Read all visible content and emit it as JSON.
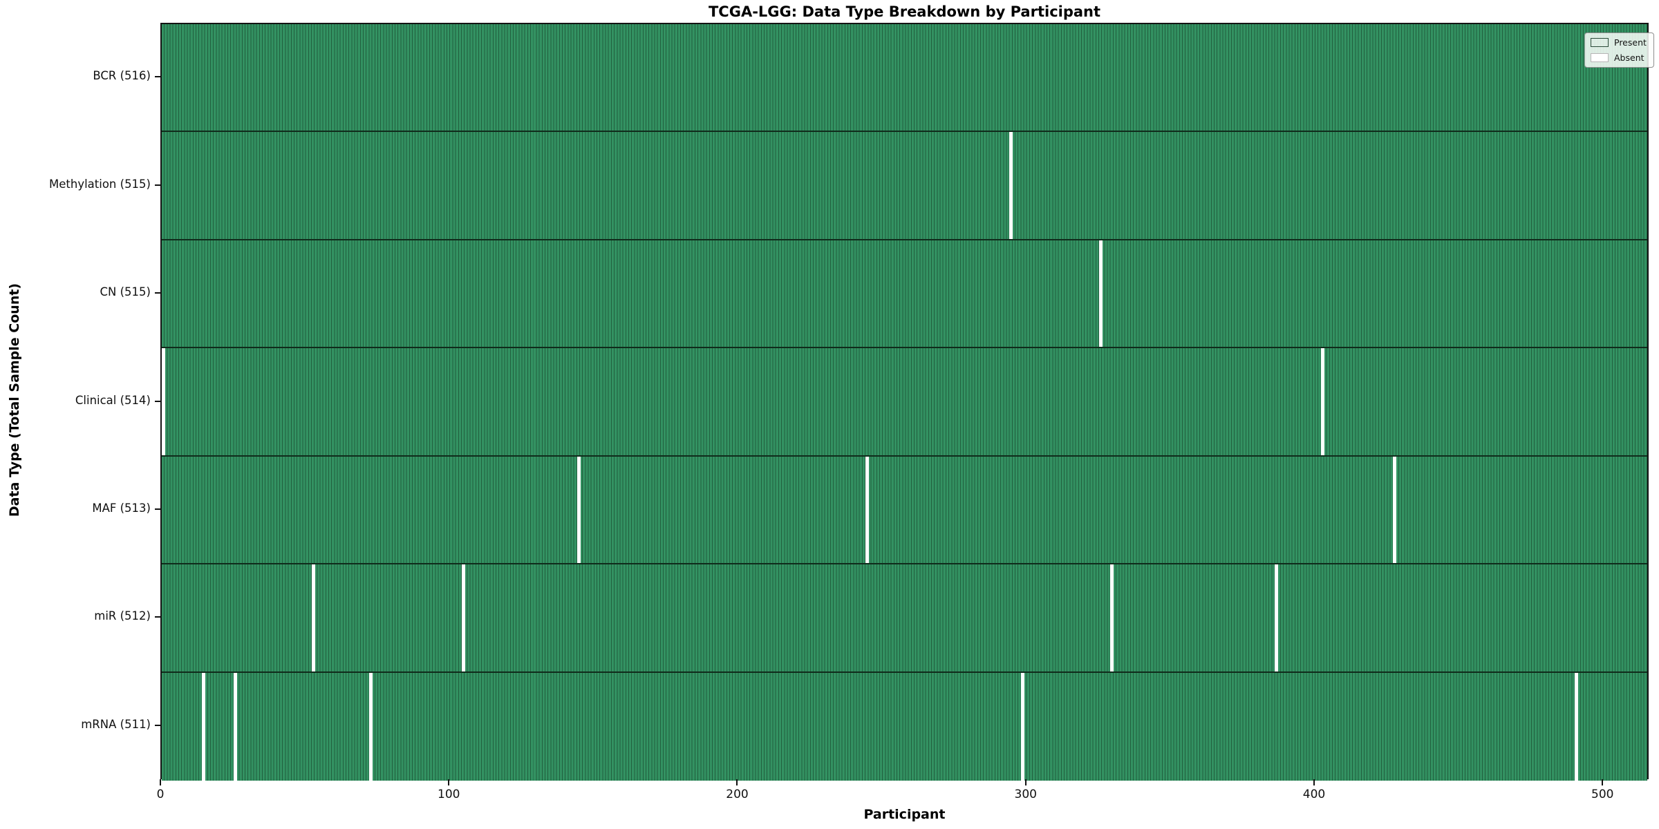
{
  "chart_data": {
    "type": "heatmap",
    "title": "TCGA-LGG: Data Type Breakdown by Participant",
    "xlabel": "Participant",
    "ylabel": "Data Type (Total Sample Count)",
    "x_ticks": [
      0,
      100,
      200,
      300,
      400,
      500
    ],
    "x_range": [
      0,
      516
    ],
    "n_participants": 516,
    "legend": [
      {
        "label": "Present",
        "color": "#2e8b57"
      },
      {
        "label": "Absent",
        "color": "#ffffff"
      }
    ],
    "legend_position": "upper right",
    "grid": false,
    "rows": [
      {
        "label": "BCR (516)",
        "data_type": "BCR",
        "present_count": 516,
        "absent_participants": []
      },
      {
        "label": "Methylation (515)",
        "data_type": "Methylation",
        "present_count": 515,
        "absent_participants": [
          294
        ]
      },
      {
        "label": "CN (515)",
        "data_type": "CN",
        "present_count": 515,
        "absent_participants": [
          325
        ]
      },
      {
        "label": "Clinical (514)",
        "data_type": "Clinical",
        "present_count": 514,
        "absent_participants": [
          0,
          402
        ]
      },
      {
        "label": "MAF (513)",
        "data_type": "MAF",
        "present_count": 513,
        "absent_participants": [
          144,
          244,
          427
        ]
      },
      {
        "label": "miR (512)",
        "data_type": "miR",
        "present_count": 512,
        "absent_participants": [
          52,
          104,
          329,
          386
        ]
      },
      {
        "label": "mRNA (511)",
        "data_type": "mRNA",
        "present_count": 511,
        "absent_participants": [
          14,
          25,
          72,
          298,
          490
        ]
      }
    ],
    "colors": {
      "present_fill": "#339262",
      "cell_edge": "#215f3e",
      "absent_fill": "#ffffff",
      "row_separator": "#102b1b",
      "plot_border": "#141414"
    }
  }
}
